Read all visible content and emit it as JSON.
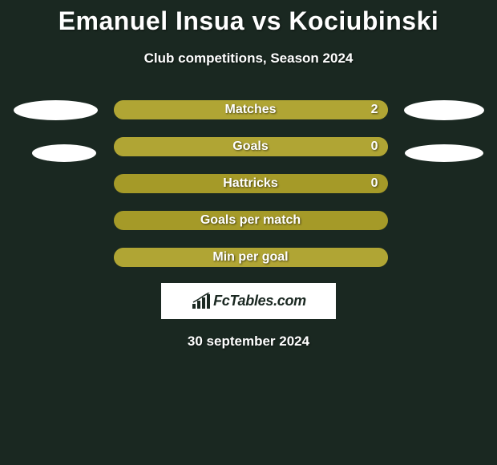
{
  "title": "Emanuel Insua vs Kociubinski",
  "subtitle": "Club competitions, Season 2024",
  "date": "30 september 2024",
  "logo_text": "FcTables.com",
  "colors": {
    "background": "#1a2821",
    "bar_bg": "#a59a28",
    "bar_fill": "#b0a534",
    "text": "#ffffff",
    "oval": "#ffffff",
    "logo_bg": "#ffffff",
    "logo_text": "#1a2821"
  },
  "stats": [
    {
      "label": "Matches",
      "value": "2",
      "fill_pct": 100,
      "show_value": true
    },
    {
      "label": "Goals",
      "value": "0",
      "fill_pct": 100,
      "show_value": true
    },
    {
      "label": "Hattricks",
      "value": "0",
      "fill_pct": 0,
      "show_value": true
    },
    {
      "label": "Goals per match",
      "value": "",
      "fill_pct": 0,
      "show_value": false
    },
    {
      "label": "Min per goal",
      "value": "",
      "fill_pct": 100,
      "show_value": false
    }
  ],
  "left_ovals": [
    {
      "size": "big"
    },
    {
      "size": "small"
    }
  ],
  "right_ovals": [
    {
      "size": "big"
    },
    {
      "size": "small"
    }
  ]
}
